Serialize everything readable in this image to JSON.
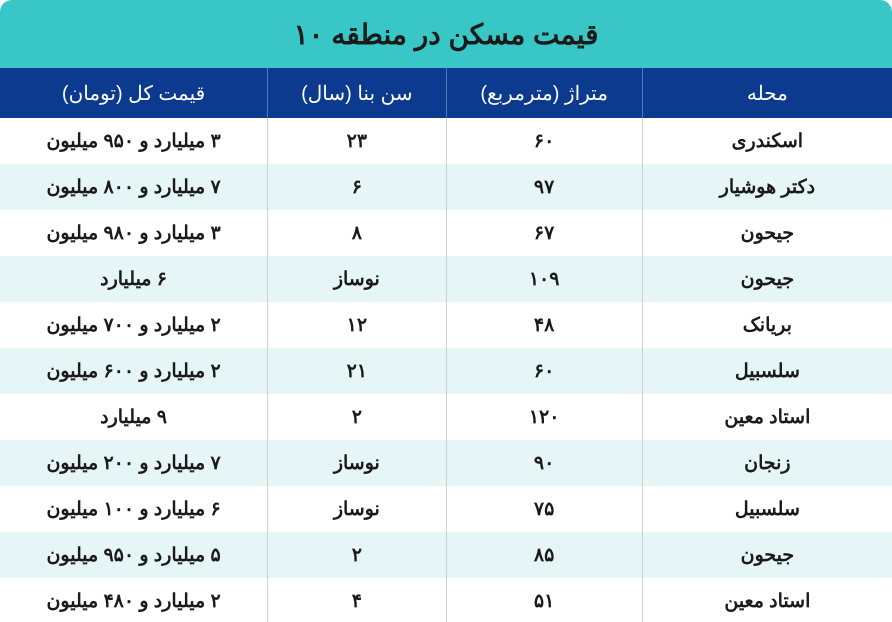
{
  "title": "قیمت مسکن در منطقه ۱۰",
  "colors": {
    "title_bg": "#38c6c6",
    "title_text": "#1a1a1a",
    "header_bg": "#0b3a8f",
    "header_text": "#ffffff",
    "row_odd_bg": "#ffffff",
    "row_even_bg": "#e6f6f6",
    "cell_text": "#1a1a1a",
    "cell_border": "#d0d0d0"
  },
  "columns": [
    {
      "key": "neighborhood",
      "label": "محله"
    },
    {
      "key": "area",
      "label": "متراژ (مترمربع)"
    },
    {
      "key": "age",
      "label": "سن بنا (سال)"
    },
    {
      "key": "price",
      "label": "قیمت کل (تومان)"
    }
  ],
  "rows": [
    {
      "neighborhood": "اسکندری",
      "area": "۶۰",
      "age": "۲۳",
      "price": "۳ میلیارد و ۹۵۰ میلیون"
    },
    {
      "neighborhood": "دکتر هوشیار",
      "area": "۹۷",
      "age": "۶",
      "price": "۷ میلیارد و ۸۰۰ میلیون"
    },
    {
      "neighborhood": "جیحون",
      "area": "۶۷",
      "age": "۸",
      "price": "۳ میلیارد و ۹۸۰ میلیون"
    },
    {
      "neighborhood": "جیحون",
      "area": "۱۰۹",
      "age": "نوساز",
      "price": "۶ میلیارد"
    },
    {
      "neighborhood": "بریانک",
      "area": "۴۸",
      "age": "۱۲",
      "price": "۲ میلیارد و ۷۰۰ میلیون"
    },
    {
      "neighborhood": "سلسبیل",
      "area": "۶۰",
      "age": "۲۱",
      "price": "۲ میلیارد و ۶۰۰ میلیون"
    },
    {
      "neighborhood": "استاد معین",
      "area": "۱۲۰",
      "age": "۲",
      "price": "۹ میلیارد"
    },
    {
      "neighborhood": "زنجان",
      "area": "۹۰",
      "age": "نوساز",
      "price": "۷ میلیارد و ۲۰۰ میلیون"
    },
    {
      "neighborhood": "سلسبیل",
      "area": "۷۵",
      "age": "نوساز",
      "price": "۶ میلیارد و ۱۰۰ میلیون"
    },
    {
      "neighborhood": "جیحون",
      "area": "۸۵",
      "age": "۲",
      "price": "۵ میلیارد و ۹۵۰ میلیون"
    },
    {
      "neighborhood": "استاد معین",
      "area": "۵۱",
      "age": "۴",
      "price": "۲ میلیارد و ۴۸۰ میلیون"
    }
  ]
}
